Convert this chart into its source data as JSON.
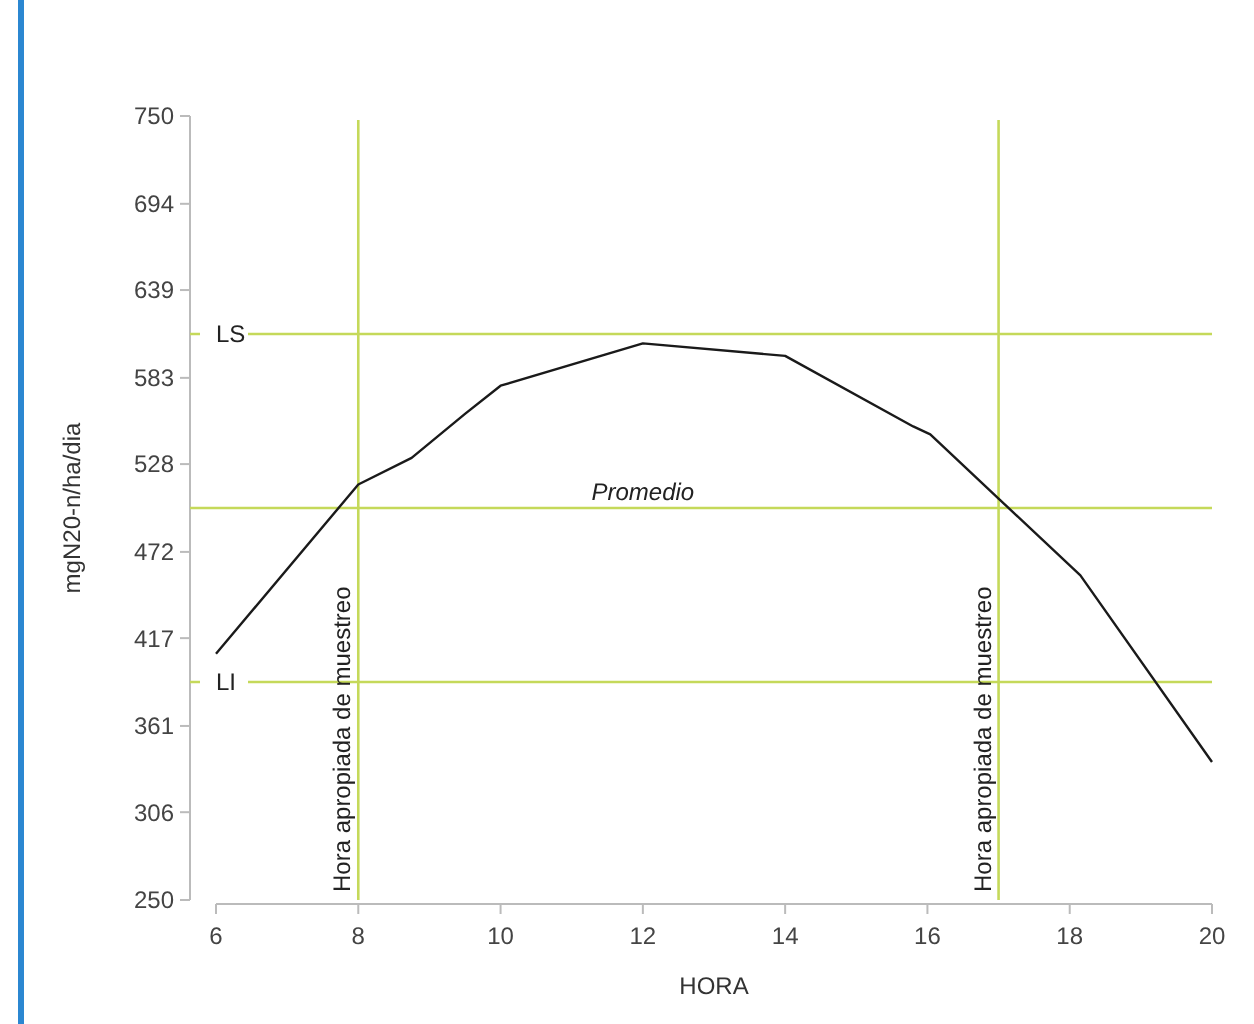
{
  "chart_data": {
    "type": "line",
    "xlabel": "HORA",
    "ylabel": "mgN20-n/ha/dia",
    "x": [
      6,
      8,
      8.75,
      9.5,
      10,
      12,
      14,
      15.8,
      16.04,
      17,
      18.15,
      20
    ],
    "series": [
      {
        "color": "#1a1a1a",
        "values": [
          407,
          515,
          532,
          560,
          578,
          605,
          597,
          552,
          547,
          506,
          457,
          338
        ]
      }
    ],
    "xlim": [
      6,
      20
    ],
    "xticks": [
      6,
      8,
      10,
      12,
      14,
      16,
      18,
      20
    ],
    "ylim": [
      250,
      750
    ],
    "yticks": [
      250,
      306,
      361,
      417,
      472,
      528,
      583,
      639,
      694,
      750
    ],
    "grid": false,
    "marker": "none",
    "line_style": "solid",
    "ref_lines": [
      {
        "axis": "y",
        "value": 611,
        "label": "LS",
        "color": "#c5d95a"
      },
      {
        "axis": "y",
        "value": 500,
        "label": "Promedio",
        "color": "#c5d95a"
      },
      {
        "axis": "y",
        "value": 389,
        "label": "LI",
        "color": "#c5d95a"
      },
      {
        "axis": "x",
        "value": 8,
        "label": "Hora apropiada de muestreo",
        "color": "#c5d95a"
      },
      {
        "axis": "x",
        "value": 17,
        "label": "Hora apropiada de muestreo",
        "color": "#c5d95a"
      }
    ]
  }
}
